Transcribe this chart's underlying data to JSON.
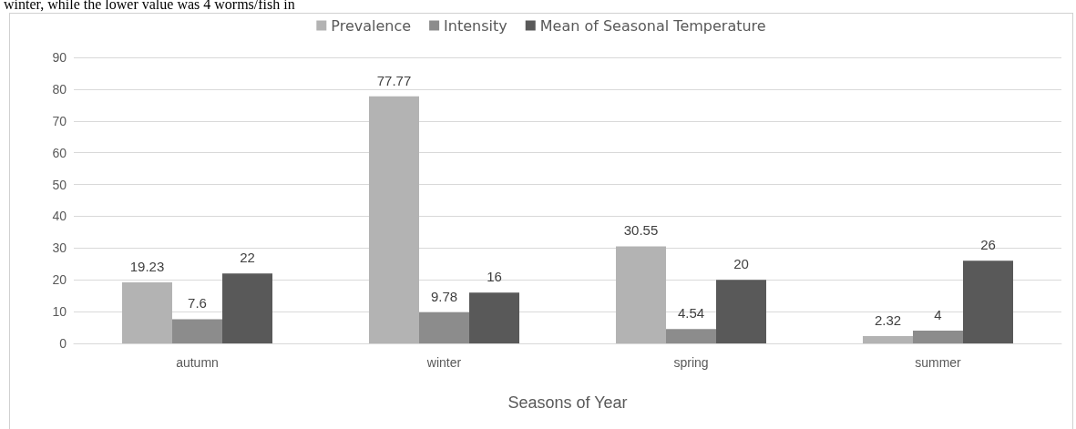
{
  "chart_data": {
    "type": "bar",
    "xlabel": "Seasons of Year",
    "annotations": [
      "winter, while the lower value was 4 worms/fish in"
    ],
    "categories": [
      "autumn",
      "winter",
      "spring",
      "summer"
    ],
    "series": [
      {
        "name": "Prevalence",
        "color": "#b3b3b3",
        "values": [
          19.23,
          77.77,
          30.55,
          2.32
        ]
      },
      {
        "name": "Intensity",
        "color": "#8c8c8c",
        "values": [
          7.6,
          9.78,
          4.54,
          4
        ]
      },
      {
        "name": "Mean of Seasonal Temperature",
        "color": "#595959",
        "values": [
          22,
          16,
          20,
          26
        ]
      }
    ],
    "ylim": [
      0,
      90
    ],
    "yticks": [
      0,
      10,
      20,
      30,
      40,
      50,
      60,
      70,
      80,
      90
    ],
    "grid": "y",
    "legend": "top",
    "data_labels": true
  }
}
